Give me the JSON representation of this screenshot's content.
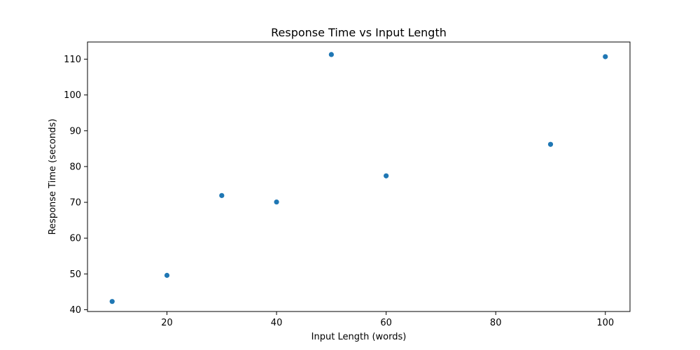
{
  "chart_data": {
    "type": "scatter",
    "title": "Response Time vs Input Length",
    "xlabel": "Input Length (words)",
    "ylabel": "Response Time (seconds)",
    "x": [
      10,
      20,
      30,
      40,
      50,
      60,
      90,
      100
    ],
    "y": [
      42.3,
      49.6,
      71.9,
      70.1,
      111.3,
      77.4,
      86.2,
      110.7
    ],
    "xlim": [
      5.5,
      104.5
    ],
    "ylim": [
      39.5,
      114.8
    ],
    "xticks": [
      20,
      40,
      60,
      80,
      100
    ],
    "yticks": [
      40,
      50,
      60,
      70,
      80,
      90,
      100,
      110
    ],
    "xtick_labels": [
      "20",
      "40",
      "60",
      "80",
      "100"
    ],
    "ytick_labels": [
      "40",
      "50",
      "60",
      "70",
      "80",
      "90",
      "100",
      "110"
    ],
    "grid": false,
    "marker_color": "#1f77b4"
  }
}
